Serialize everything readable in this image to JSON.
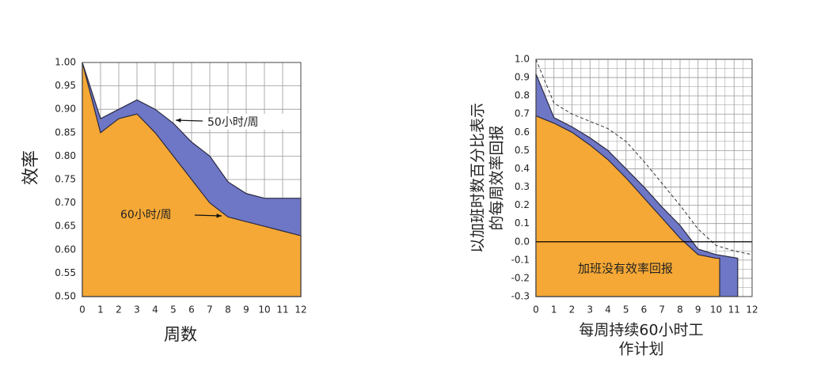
{
  "chart_data": [
    {
      "type": "area",
      "y_label": "效率",
      "x_label": "周数",
      "x": [
        0,
        1,
        2,
        3,
        4,
        5,
        6,
        7,
        8,
        9,
        10,
        11,
        12
      ],
      "series": [
        {
          "name": "50小时/周",
          "color": "#6e76c6",
          "values": [
            1.0,
            0.88,
            0.9,
            0.92,
            0.9,
            0.87,
            0.83,
            0.8,
            0.745,
            0.72,
            0.71,
            0.71,
            0.71
          ]
        },
        {
          "name": "60小时/周",
          "color": "#f5a835",
          "values": [
            1.0,
            0.85,
            0.88,
            0.89,
            0.85,
            0.8,
            0.75,
            0.7,
            0.67,
            0.66,
            0.65,
            0.64,
            0.63
          ]
        }
      ],
      "xlim": [
        0,
        12
      ],
      "xticks": [
        0,
        1,
        2,
        3,
        4,
        5,
        6,
        7,
        8,
        9,
        10,
        11,
        12
      ],
      "ylim": [
        0.5,
        1
      ],
      "yticks": [
        {
          "value": 0.5,
          "label": "0.50"
        },
        0.55,
        {
          "value": 0.6,
          "label": "0.60"
        },
        0.65,
        {
          "value": 0.7,
          "label": "0.70"
        },
        0.75,
        {
          "value": 0.8,
          "label": "0.80"
        },
        0.85,
        {
          "value": 0.9,
          "label": "0.90"
        },
        0.95,
        {
          "value": 1,
          "label": "1.00"
        }
      ],
      "grid": true
    },
    {
      "type": "area",
      "y_label": [
        "以加班时数百分比表示",
        "的每周效率回报"
      ],
      "x_label": [
        "每周持续60小时工",
        "作计划"
      ],
      "annotation": "加班没有效率回报",
      "series": [
        {
          "style": "dashed",
          "color": "#333333",
          "x": [
            0,
            1,
            2,
            3,
            4,
            5,
            6,
            7,
            8,
            9,
            10,
            11,
            12
          ],
          "values": [
            1.0,
            0.76,
            0.7,
            0.66,
            0.62,
            0.55,
            0.44,
            0.32,
            0.2,
            0.07,
            -0.02,
            -0.05,
            -0.07
          ]
        },
        {
          "color": "#6e76c6",
          "x": [
            0,
            1,
            2,
            3,
            4,
            5,
            6,
            7,
            8,
            9,
            10,
            11.2
          ],
          "values": [
            0.92,
            0.68,
            0.63,
            0.57,
            0.5,
            0.4,
            0.3,
            0.19,
            0.09,
            -0.04,
            -0.07,
            -0.09
          ]
        },
        {
          "color": "#f5a835",
          "x": [
            0,
            1,
            2,
            3,
            4,
            5,
            6,
            7,
            8,
            9,
            10,
            10.2
          ],
          "values": [
            0.69,
            0.65,
            0.6,
            0.53,
            0.45,
            0.35,
            0.24,
            0.13,
            0.02,
            -0.07,
            -0.09,
            -0.09
          ]
        }
      ],
      "xlim": [
        0,
        12
      ],
      "xticks": [
        0,
        1,
        2,
        3,
        4,
        5,
        6,
        7,
        8,
        9,
        10,
        11,
        12
      ],
      "ylim": [
        -0.3,
        1
      ],
      "yticks": [
        -0.3,
        -0.2,
        -0.1,
        {
          "value": 0,
          "label": "0.0"
        },
        0.1,
        0.2,
        0.3,
        0.4,
        0.5,
        0.6,
        0.7,
        0.8,
        0.9,
        {
          "value": 1,
          "label": "1.0"
        }
      ],
      "grid": true,
      "minor_grid": true,
      "zero_line": true
    }
  ]
}
